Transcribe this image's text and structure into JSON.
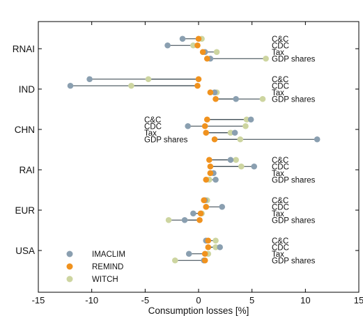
{
  "chart_data": {
    "type": "scatter",
    "xlabel": "Consumption losses [%]",
    "ylabel": "",
    "title": "",
    "xlim": [
      -15,
      15
    ],
    "xticks": [
      -15,
      -10,
      -5,
      0,
      5,
      10,
      15
    ],
    "grid": false,
    "legend_position": "bottom-left",
    "regions": [
      "RNAI",
      "IND",
      "CHN",
      "RAI",
      "EUR",
      "USA"
    ],
    "regimes": [
      "C&C",
      "CDC",
      "Tax",
      "GDP shares"
    ],
    "annotation_side": {
      "RNAI": "right",
      "IND": "right",
      "CHN": "left",
      "RAI": "right",
      "EUR": "right",
      "USA": "right"
    },
    "series": [
      {
        "name": "IMACLIM",
        "color": "#8a9fb0",
        "values": {
          "RNAI": [
            -1.5,
            -2.9,
            0.6,
            1.1
          ],
          "IND": [
            -10.2,
            -12.0,
            1.5,
            3.5
          ],
          "CHN": [
            4.9,
            -1.0,
            3.4,
            11.1
          ],
          "RAI": [
            3.0,
            5.2,
            1.4,
            1.6
          ],
          "EUR": [
            0.6,
            2.2,
            -0.5,
            -1.3
          ],
          "USA": [
            0.7,
            2.0,
            -0.9,
            0.5
          ]
        }
      },
      {
        "name": "REMIND",
        "color": "#f0921e",
        "values": {
          "RNAI": [
            0.0,
            -0.1,
            0.4,
            0.8
          ],
          "IND": [
            0.0,
            -0.1,
            1.1,
            1.6
          ],
          "CHN": [
            0.8,
            0.6,
            0.7,
            1.5
          ],
          "RAI": [
            1.0,
            1.1,
            1.1,
            0.7
          ],
          "EUR": [
            0.5,
            0.7,
            0.2,
            0.1
          ],
          "USA": [
            0.9,
            0.9,
            0.6,
            0.6
          ]
        }
      },
      {
        "name": "WITCH",
        "color": "#cdd5a0",
        "values": {
          "RNAI": [
            0.3,
            -0.5,
            1.7,
            6.3
          ],
          "IND": [
            -4.7,
            -6.3,
            1.7,
            6.0
          ],
          "CHN": [
            4.5,
            4.4,
            3.0,
            3.9
          ],
          "RAI": [
            3.5,
            4.0,
            1.1,
            1.0
          ],
          "EUR": [
            0.8,
            0.7,
            0.3,
            -2.8
          ],
          "USA": [
            1.6,
            1.6,
            0.9,
            -2.2
          ]
        }
      }
    ]
  }
}
